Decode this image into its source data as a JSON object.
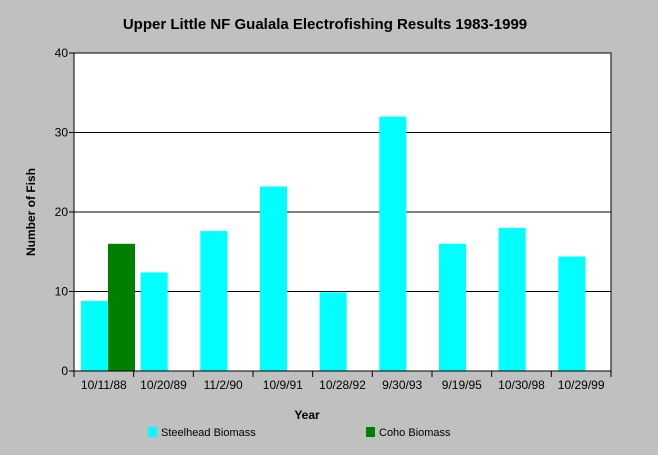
{
  "chart_data": {
    "type": "bar",
    "title": "Upper Little NF Gualala Electrofishing Results 1983-1999",
    "xlabel": "Year",
    "ylabel": "Number of Fish",
    "ylim": [
      0,
      40
    ],
    "yticks": [
      0,
      10,
      20,
      30,
      40
    ],
    "grid": true,
    "legend_position": "bottom",
    "categories": [
      "10/11/88",
      "10/20/89",
      "11/2/90",
      "10/9/91",
      "10/28/92",
      "9/30/93",
      "9/19/95",
      "10/30/98",
      "10/29/99"
    ],
    "series": [
      {
        "name": "Steelhead Biomass",
        "color": "#00ffff",
        "values": [
          8.8,
          12.4,
          17.6,
          23.2,
          9.9,
          32.0,
          16.0,
          18.0,
          14.4
        ]
      },
      {
        "name": "Coho Biomass",
        "color": "#008000",
        "values": [
          16.0,
          null,
          null,
          null,
          null,
          null,
          null,
          null,
          null
        ]
      }
    ]
  }
}
